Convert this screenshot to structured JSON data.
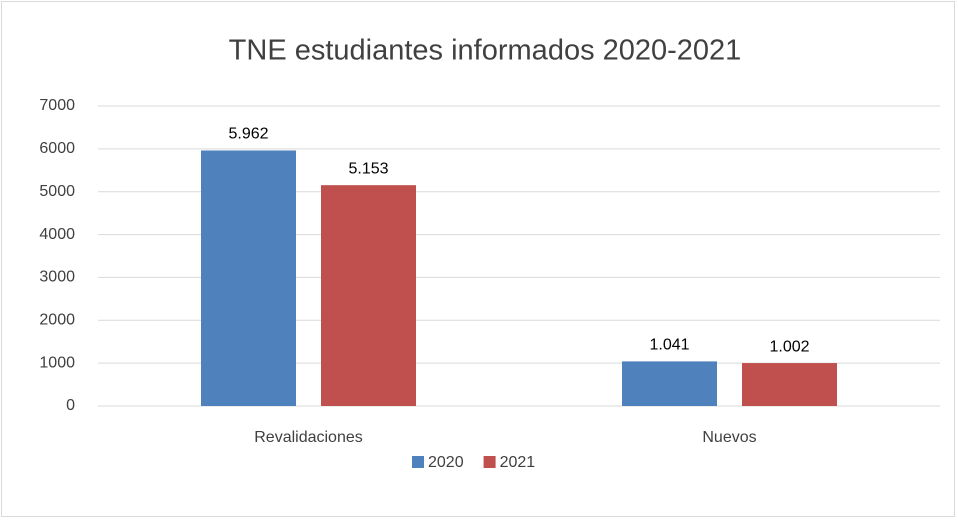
{
  "chart_data": {
    "type": "bar",
    "title": "TNE estudiantes informados 2020-2021",
    "categories": [
      "Revalidaciones",
      "Nuevos"
    ],
    "series": [
      {
        "name": "2020",
        "color": "#4f81bd",
        "values": [
          5962,
          1041
        ],
        "value_labels": [
          "5.962",
          "1.041"
        ]
      },
      {
        "name": "2021",
        "color": "#c0504d",
        "values": [
          5153,
          1002
        ],
        "value_labels": [
          "5.153",
          "1.002"
        ]
      }
    ],
    "ylim": [
      0,
      7000
    ],
    "yticks": [
      0,
      1000,
      2000,
      3000,
      4000,
      5000,
      6000,
      7000
    ],
    "grid": true,
    "legend": "bottom"
  }
}
